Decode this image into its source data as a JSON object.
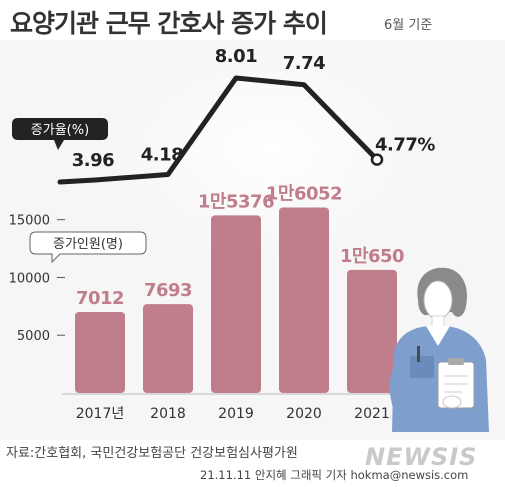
{
  "header": {
    "title": "요양기관 근무 간호사 증가 추이",
    "subtitle": "6월 기준"
  },
  "footer": {
    "source": "자료:간호협회, 국민건강보험공단 건강보험심사평가원",
    "credit": "21.11.11 안지혜 그래픽 기자 hokma@newsis.com",
    "watermark": "NEWSIS"
  },
  "colors": {
    "bar": "#c07d8b",
    "bar_label": "#c07d8b",
    "line": "#222222",
    "axis_text": "#333333"
  },
  "chart_data": [
    {
      "type": "line",
      "legend_label": "증가율(%)",
      "categories": [
        "2017년",
        "2018",
        "2019",
        "2020",
        "2021"
      ],
      "values": [
        3.96,
        4.18,
        8.01,
        7.74,
        4.77
      ],
      "value_labels": [
        "3.96",
        "4.18",
        "8.01",
        "7.74",
        "4.77%"
      ]
    },
    {
      "type": "bar",
      "legend_label": "증가인원(명)",
      "categories": [
        "2017년",
        "2018",
        "2019",
        "2020",
        "2021"
      ],
      "values": [
        7012,
        7693,
        15376,
        16052,
        10650
      ],
      "value_labels": [
        "7012",
        "7693",
        "1만5376",
        "1만6052",
        "1만650"
      ],
      "y_ticks": [
        5000,
        10000,
        15000
      ],
      "y_tick_labels": [
        "5000",
        "10000",
        "15000"
      ],
      "ylim": [
        0,
        18000
      ]
    }
  ]
}
